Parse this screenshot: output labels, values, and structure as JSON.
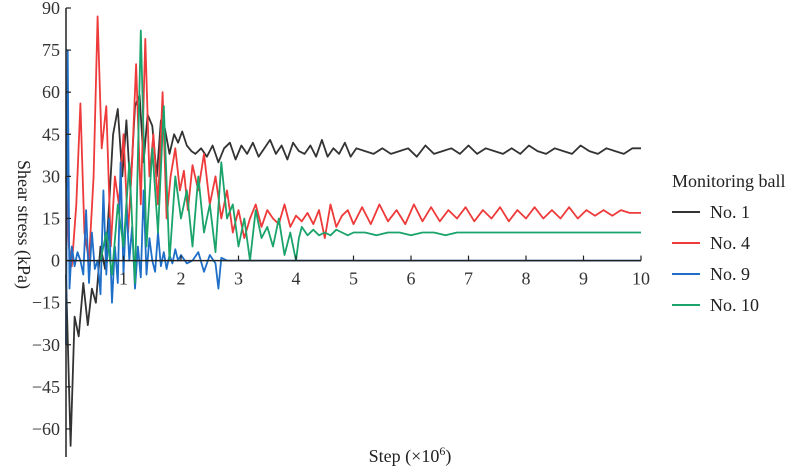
{
  "chart_data": {
    "type": "line",
    "title": "",
    "xlabel": "Step (×10",
    "xlabel_sup": "6",
    "xlabel_close": ")",
    "ylabel": "Shear stress (kPa)",
    "xlim": [
      0,
      10
    ],
    "ylim": [
      -70,
      90
    ],
    "x_ticks": [
      1,
      2,
      3,
      4,
      5,
      6,
      7,
      8,
      9,
      10
    ],
    "y_ticks": [
      90,
      75,
      60,
      45,
      30,
      15,
      0,
      -15,
      -30,
      -45,
      -60
    ],
    "y_tick_labels": [
      "90",
      "75",
      "60",
      "45",
      "30",
      "15",
      "0",
      "−15",
      "−30",
      "−45",
      "−60"
    ],
    "grid": false,
    "legend": {
      "title": "Monitoring ball",
      "placement": "right"
    },
    "series": [
      {
        "name": "No. 1",
        "color": "#333333",
        "x": [
          0,
          0.08,
          0.15,
          0.22,
          0.3,
          0.38,
          0.45,
          0.52,
          0.6,
          0.68,
          0.75,
          0.82,
          0.9,
          0.98,
          1.05,
          1.12,
          1.2,
          1.28,
          1.35,
          1.42,
          1.5,
          1.58,
          1.65,
          1.72,
          1.8,
          1.88,
          1.95,
          2.02,
          2.1,
          2.18,
          2.25,
          2.35,
          2.45,
          2.55,
          2.65,
          2.75,
          2.85,
          2.95,
          3.05,
          3.15,
          3.25,
          3.35,
          3.45,
          3.55,
          3.65,
          3.75,
          3.85,
          3.95,
          4.05,
          4.15,
          4.25,
          4.35,
          4.45,
          4.55,
          4.65,
          4.75,
          4.85,
          4.95,
          5.05,
          5.2,
          5.35,
          5.5,
          5.65,
          5.8,
          5.95,
          6.1,
          6.25,
          6.4,
          6.55,
          6.7,
          6.85,
          7.0,
          7.15,
          7.3,
          7.45,
          7.6,
          7.75,
          7.9,
          8.05,
          8.2,
          8.35,
          8.5,
          8.65,
          8.8,
          8.95,
          9.1,
          9.25,
          9.4,
          9.55,
          9.7,
          9.85,
          10.0
        ],
        "values": [
          -5,
          -66,
          -20,
          -27,
          -8,
          -23,
          -10,
          -15,
          5,
          -3,
          20,
          45,
          54,
          30,
          50,
          25,
          55,
          59,
          35,
          52,
          48,
          30,
          50,
          47,
          38,
          45,
          42,
          46,
          41,
          39,
          38,
          40,
          37,
          41,
          35,
          40,
          42,
          36,
          41,
          38,
          42,
          37,
          40,
          43,
          38,
          41,
          36,
          42,
          39,
          38,
          41,
          37,
          43,
          37,
          40,
          38,
          42,
          37,
          40,
          39,
          38,
          40,
          38,
          39,
          40,
          37,
          41,
          38,
          39,
          40,
          38,
          41,
          38,
          40,
          39,
          38,
          40,
          38,
          41,
          39,
          38,
          40,
          39,
          38,
          41,
          39,
          38,
          40,
          39,
          38,
          40,
          40
        ]
      },
      {
        "name": "No. 4",
        "color": "#ee3a3a",
        "x": [
          0,
          0.05,
          0.1,
          0.18,
          0.25,
          0.32,
          0.4,
          0.48,
          0.55,
          0.62,
          0.7,
          0.78,
          0.85,
          0.92,
          1.0,
          1.08,
          1.15,
          1.22,
          1.3,
          1.38,
          1.45,
          1.52,
          1.6,
          1.68,
          1.75,
          1.82,
          1.9,
          1.98,
          2.05,
          2.12,
          2.2,
          2.3,
          2.4,
          2.5,
          2.6,
          2.7,
          2.8,
          2.9,
          3.0,
          3.1,
          3.2,
          3.3,
          3.4,
          3.5,
          3.6,
          3.7,
          3.8,
          3.9,
          4.0,
          4.1,
          4.2,
          4.3,
          4.4,
          4.5,
          4.6,
          4.7,
          4.8,
          4.9,
          5.0,
          5.15,
          5.3,
          5.45,
          5.6,
          5.75,
          5.9,
          6.05,
          6.2,
          6.35,
          6.5,
          6.65,
          6.8,
          6.95,
          7.1,
          7.25,
          7.4,
          7.55,
          7.7,
          7.85,
          8.0,
          8.15,
          8.3,
          8.45,
          8.6,
          8.75,
          8.9,
          9.05,
          9.2,
          9.35,
          9.5,
          9.65,
          9.8,
          10.0
        ],
        "values": [
          30,
          5,
          -2,
          20,
          56,
          10,
          0,
          30,
          87,
          40,
          55,
          5,
          30,
          20,
          45,
          10,
          35,
          70,
          20,
          79,
          30,
          45,
          20,
          60,
          15,
          30,
          40,
          25,
          32,
          18,
          34,
          25,
          38,
          20,
          30,
          15,
          25,
          10,
          18,
          8,
          15,
          20,
          12,
          18,
          15,
          13,
          20,
          12,
          16,
          14,
          17,
          13,
          18,
          8,
          20,
          12,
          16,
          18,
          13,
          19,
          13,
          20,
          14,
          18,
          13,
          20,
          14,
          19,
          14,
          18,
          15,
          19,
          14,
          18,
          15,
          19,
          14,
          18,
          15,
          19,
          15,
          18,
          15,
          19,
          15,
          18,
          16,
          18,
          16,
          18,
          17,
          17
        ]
      },
      {
        "name": "No. 9",
        "color": "#1f6fc8",
        "x": [
          0,
          0.03,
          0.06,
          0.1,
          0.15,
          0.2,
          0.25,
          0.3,
          0.35,
          0.4,
          0.45,
          0.5,
          0.55,
          0.6,
          0.65,
          0.7,
          0.75,
          0.8,
          0.85,
          0.9,
          0.95,
          1.0,
          1.05,
          1.1,
          1.15,
          1.2,
          1.25,
          1.3,
          1.35,
          1.4,
          1.45,
          1.5,
          1.55,
          1.6,
          1.65,
          1.7,
          1.75,
          1.8,
          1.85,
          1.9,
          1.95,
          2.0,
          2.1,
          2.2,
          2.3,
          2.4,
          2.5,
          2.6,
          2.65,
          2.7,
          2.8,
          3.0,
          4.0,
          5.0,
          6.0,
          7.0,
          8.0,
          9.0,
          10.0
        ],
        "values": [
          -30,
          75,
          -10,
          5,
          -2,
          3,
          0,
          -5,
          18,
          -8,
          10,
          -3,
          0,
          -12,
          25,
          -5,
          15,
          -15,
          5,
          -8,
          35,
          -5,
          20,
          0,
          12,
          -10,
          5,
          -6,
          25,
          -5,
          8,
          0,
          -4,
          10,
          -2,
          3,
          -3,
          2,
          -1,
          4,
          0,
          2,
          -1,
          0,
          3,
          -4,
          2,
          -1,
          -10,
          1,
          0,
          0,
          0,
          0,
          0,
          0,
          0,
          0,
          0
        ]
      },
      {
        "name": "No. 10",
        "color": "#1aa36a",
        "x": [
          0.6,
          0.7,
          0.8,
          0.9,
          1.0,
          1.1,
          1.2,
          1.3,
          1.4,
          1.5,
          1.6,
          1.7,
          1.8,
          1.9,
          2.0,
          2.1,
          2.2,
          2.3,
          2.4,
          2.5,
          2.6,
          2.7,
          2.8,
          2.9,
          3.0,
          3.1,
          3.2,
          3.3,
          3.4,
          3.5,
          3.6,
          3.7,
          3.8,
          3.9,
          4.0,
          4.05,
          4.1,
          4.2,
          4.3,
          4.4,
          4.5,
          4.6,
          4.7,
          4.8,
          4.9,
          5.0,
          5.2,
          5.4,
          5.6,
          5.8,
          6.0,
          6.2,
          6.4,
          6.6,
          6.8,
          7.0,
          7.5,
          8.0,
          8.5,
          9.0,
          9.5,
          10.0
        ],
        "values": [
          0,
          10,
          -5,
          20,
          5,
          35,
          -8,
          82,
          5,
          40,
          10,
          55,
          0,
          30,
          15,
          25,
          5,
          30,
          10,
          20,
          3,
          35,
          15,
          20,
          5,
          15,
          0,
          18,
          8,
          12,
          5,
          15,
          2,
          10,
          0,
          8,
          12,
          9,
          11,
          9,
          10,
          9,
          11,
          10,
          9,
          10,
          10,
          9,
          10,
          10,
          9,
          10,
          10,
          9,
          10,
          10,
          10,
          10,
          10,
          10,
          10,
          10
        ]
      }
    ]
  }
}
